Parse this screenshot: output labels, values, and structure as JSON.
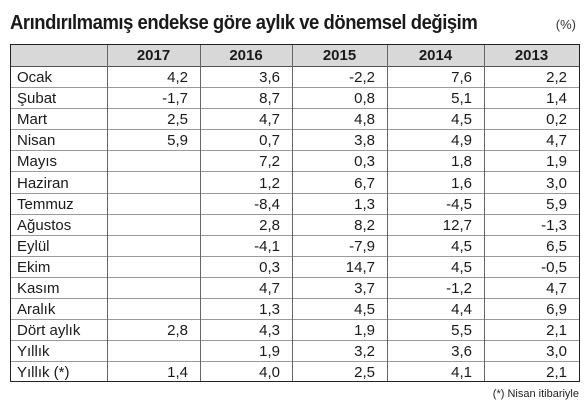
{
  "title": "Arındırılmamış endekse göre aylık ve dönemsel değişim",
  "unit": "(%)",
  "columns": [
    "2017",
    "2016",
    "2015",
    "2014",
    "2013"
  ],
  "rows": [
    {
      "label": "Ocak",
      "values": [
        "4,2",
        "3,6",
        "-2,2",
        "7,6",
        "2,2"
      ]
    },
    {
      "label": "Şubat",
      "values": [
        "-1,7",
        "8,7",
        "0,8",
        "5,1",
        "1,4"
      ]
    },
    {
      "label": "Mart",
      "values": [
        "2,5",
        "4,7",
        "4,8",
        "4,5",
        "0,2"
      ]
    },
    {
      "label": "Nisan",
      "values": [
        "5,9",
        "0,7",
        "3,8",
        "4,9",
        "4,7"
      ]
    },
    {
      "label": "Mayıs",
      "values": [
        "",
        "7,2",
        "0,3",
        "1,8",
        "1,9"
      ]
    },
    {
      "label": "Haziran",
      "values": [
        "",
        "1,2",
        "6,7",
        "1,6",
        "3,0"
      ]
    },
    {
      "label": "Temmuz",
      "values": [
        "",
        "-8,4",
        "1,3",
        "-4,5",
        "5,9"
      ]
    },
    {
      "label": "Ağustos",
      "values": [
        "",
        "2,8",
        "8,2",
        "12,7",
        "-1,3"
      ]
    },
    {
      "label": "Eylül",
      "values": [
        "",
        "-4,1",
        "-7,9",
        "4,5",
        "6,5"
      ]
    },
    {
      "label": "Ekim",
      "values": [
        "",
        "0,3",
        "14,7",
        "4,5",
        "-0,5"
      ]
    },
    {
      "label": "Kasım",
      "values": [
        "",
        "4,7",
        "3,7",
        "-1,2",
        "4,7"
      ]
    },
    {
      "label": "Aralık",
      "values": [
        "",
        "1,3",
        "4,5",
        "4,4",
        "6,9"
      ]
    },
    {
      "label": "Dört aylık",
      "values": [
        "2,8",
        "4,3",
        "1,9",
        "5,5",
        "2,1"
      ]
    },
    {
      "label": "Yıllık",
      "values": [
        "",
        "1,9",
        "3,2",
        "3,6",
        "3,0"
      ]
    },
    {
      "label": "Yıllık (*)",
      "values": [
        "1,4",
        "4,0",
        "2,5",
        "4,1",
        "2,1"
      ]
    }
  ],
  "footnote": "(*) Nisan itibariyle"
}
